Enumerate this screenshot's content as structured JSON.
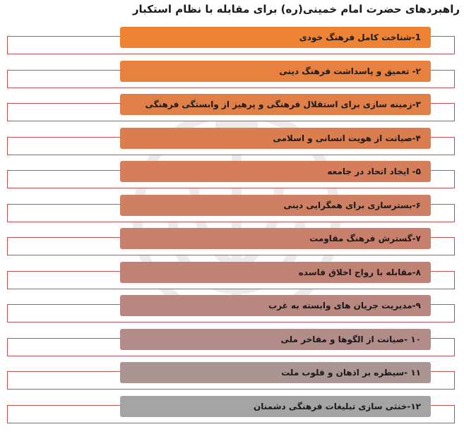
{
  "title": "راهبردهای حضرت امام خمینی(ره) برای مقابله با نظام استکبار",
  "colors": {
    "outline": "#c0504d",
    "watermark": "#ebebeb"
  },
  "items": [
    {
      "label": "1-شناخت کامل فرهنگ خودی",
      "color": "#ee8433"
    },
    {
      "label": "۲- تعمیق و پاسداشت فرهنگ دینی",
      "color": "#e88040"
    },
    {
      "label": "۳-زمینه سازی برای استقلال فرهنگی و پرهیز از وابستگی فرهنگی",
      "color": "#e07f48"
    },
    {
      "label": "۴-صیانت از هویت انسانی و اسلامی",
      "color": "#da7e50"
    },
    {
      "label": "۵- ایجاد اتحاد در جامعه",
      "color": "#d67e5c"
    },
    {
      "label": "۶-بسترسازی برای همگرایی دینی",
      "color": "#cf7f62"
    },
    {
      "label": "۷-گسترش فرهنگ مقاومت",
      "color": "#c8806c"
    },
    {
      "label": "۸-مقابله با رواج اخلاق فاسده",
      "color": "#c18276"
    },
    {
      "label": "۹-مدیریت جریان های وابسته به غرب",
      "color": "#b9877f"
    },
    {
      "label": "۱۰ -صیانت از الگوها و مفاخر ملی",
      "color": "#b28c89"
    },
    {
      "label": "۱۱ -سیطره بر اذهان و قلوب ملت",
      "color": "#aa9592"
    },
    {
      "label": "۱۲-خنثی سازی تبلیغات فرهنگی دشمنان",
      "color": "#a4a4a4"
    }
  ]
}
